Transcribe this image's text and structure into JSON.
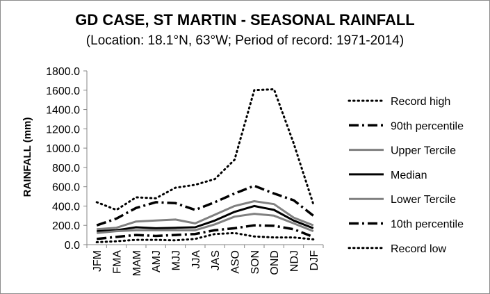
{
  "chart_data": {
    "type": "line",
    "title": "GD CASE, ST MARTIN - SEASONAL RAINFALL",
    "subtitle": "(Location: 18.1°N, 63°W; Period of record: 1971-2014)",
    "ylabel": "RAINFALL (mm)",
    "xlabel": "",
    "ylim": [
      0,
      1800
    ],
    "yticks": [
      "0.0",
      "200.0",
      "400.0",
      "600.0",
      "800.0",
      "1000.0",
      "1200.0",
      "1400.0",
      "1600.0",
      "1800.0"
    ],
    "categories": [
      "JFM",
      "FMA",
      "MAM",
      "AMJ",
      "MJJ",
      "JJA",
      "JAS",
      "ASO",
      "SON",
      "OND",
      "NDJ",
      "DJF"
    ],
    "grid": false,
    "legend_position": "right",
    "series": [
      {
        "name": "Record high",
        "style": "dotted",
        "color": "#000000",
        "values": [
          440,
          360,
          490,
          480,
          590,
          620,
          680,
          880,
          1600,
          1610,
          1050,
          420
        ]
      },
      {
        "name": "90th percentile",
        "style": "dash-dot",
        "color": "#000000",
        "values": [
          200,
          270,
          380,
          440,
          430,
          360,
          440,
          530,
          610,
          530,
          460,
          300
        ]
      },
      {
        "name": "Upper Tercile",
        "style": "solid",
        "color": "#808080",
        "values": [
          160,
          175,
          240,
          250,
          260,
          220,
          310,
          400,
          450,
          420,
          280,
          200
        ]
      },
      {
        "name": "Median",
        "style": "solid-thick",
        "color": "#000000",
        "values": [
          140,
          150,
          180,
          170,
          175,
          180,
          250,
          340,
          400,
          360,
          250,
          170
        ]
      },
      {
        "name": "Lower Tercile",
        "style": "solid",
        "color": "#808080",
        "values": [
          120,
          140,
          150,
          150,
          150,
          150,
          210,
          290,
          320,
          300,
          220,
          140
        ]
      },
      {
        "name": "10th percentile",
        "style": "dash-dot",
        "color": "#000000",
        "values": [
          60,
          80,
          100,
          90,
          100,
          110,
          150,
          170,
          200,
          195,
          160,
          80
        ]
      },
      {
        "name": "Record low",
        "style": "dotted",
        "color": "#000000",
        "values": [
          25,
          35,
          50,
          50,
          45,
          60,
          110,
          120,
          85,
          75,
          75,
          55
        ]
      }
    ]
  }
}
